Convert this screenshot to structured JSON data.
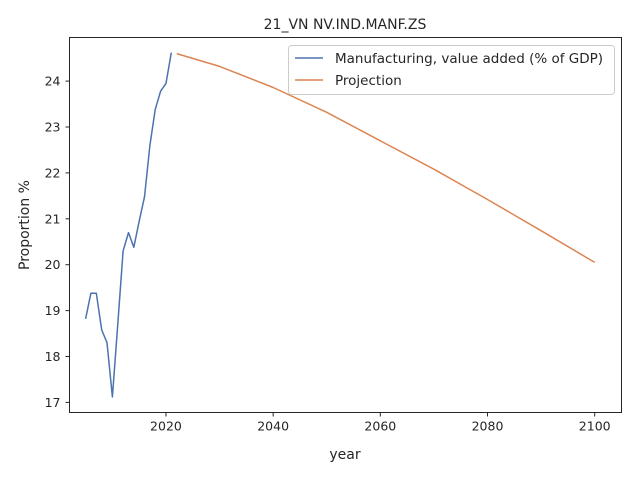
{
  "chart_data": {
    "type": "line",
    "title": "21_VN NV.IND.MANF.ZS",
    "xlabel": "year",
    "ylabel": "Proportion %",
    "xlim": [
      2002,
      2105
    ],
    "ylim": [
      16.78,
      24.95
    ],
    "xticks": [
      2020,
      2040,
      2060,
      2080,
      2100
    ],
    "yticks": [
      17,
      18,
      19,
      20,
      21,
      22,
      23,
      24
    ],
    "grid": false,
    "legend_position": "top-right",
    "series": [
      {
        "name": "Manufacturing, value added (% of GDP)",
        "color": "#4c72b0",
        "x": [
          2005,
          2006,
          2007,
          2008,
          2009,
          2010,
          2011,
          2012,
          2013,
          2014,
          2015,
          2016,
          2017,
          2018,
          2019,
          2020,
          2021
        ],
        "y": [
          18.82,
          19.38,
          19.38,
          18.58,
          18.3,
          17.12,
          18.68,
          20.3,
          20.7,
          20.38,
          20.95,
          21.48,
          22.6,
          23.38,
          23.78,
          23.95,
          24.62
        ]
      },
      {
        "name": "Projection",
        "color": "#dd8452",
        "x": [
          2022,
          2030,
          2040,
          2050,
          2060,
          2070,
          2080,
          2090,
          2100
        ],
        "y": [
          24.6,
          24.32,
          23.86,
          23.32,
          22.7,
          22.08,
          21.42,
          20.74,
          20.05
        ]
      }
    ]
  }
}
